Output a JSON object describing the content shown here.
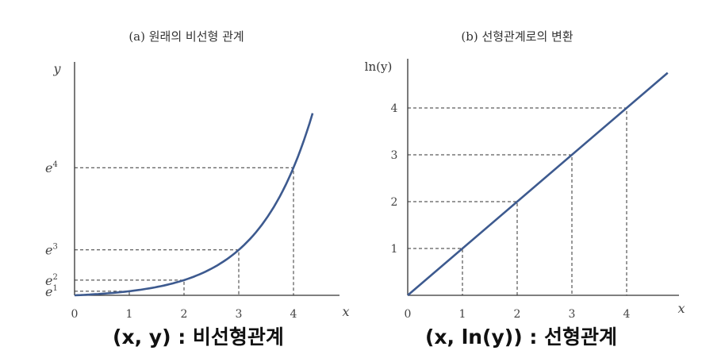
{
  "chart_data": [
    {
      "type": "line",
      "title": "(a) 원래의 비선형 관계",
      "xlabel": "x",
      "ylabel": "y",
      "x_ticks": [
        "0",
        "1",
        "2",
        "3",
        "4"
      ],
      "y_ticks": [
        {
          "base": "e",
          "exp": "1"
        },
        {
          "base": "e",
          "exp": "2"
        },
        {
          "base": "e",
          "exp": "3"
        },
        {
          "base": "e",
          "exp": "4"
        }
      ],
      "series": [
        {
          "x": [
            0,
            0.5,
            1,
            1.5,
            2,
            2.5,
            3,
            3.5,
            4,
            4.35
          ],
          "y": [
            1,
            1.65,
            2.72,
            4.48,
            7.39,
            12.18,
            20.09,
            33.12,
            54.6,
            77.48
          ]
        }
      ],
      "guides": [
        [
          1,
          2.72
        ],
        [
          2,
          7.39
        ],
        [
          3,
          20.09
        ],
        [
          4,
          54.6
        ]
      ],
      "xlim": [
        0,
        4.9
      ],
      "y_scale": "exponential",
      "caption": "(x, y) : 비선형관계",
      "color": "#3d5a8f"
    },
    {
      "type": "line",
      "title": "(b) 선형관계로의 변환",
      "xlabel": "x",
      "ylabel": "ln(y)",
      "x_ticks": [
        "0",
        "1",
        "2",
        "3",
        "4"
      ],
      "y_ticks": [
        "1",
        "2",
        "3",
        "4"
      ],
      "series": [
        {
          "x": [
            0,
            4.75
          ],
          "y": [
            0,
            4.75
          ]
        }
      ],
      "guides": [
        [
          1,
          1
        ],
        [
          2,
          2
        ],
        [
          3,
          3
        ],
        [
          4,
          4
        ]
      ],
      "xlim": [
        0,
        4.9
      ],
      "ylim": [
        0,
        4.9
      ],
      "caption": "(x, ln(y)) : 선형관계",
      "color": "#3d5a8f"
    }
  ]
}
